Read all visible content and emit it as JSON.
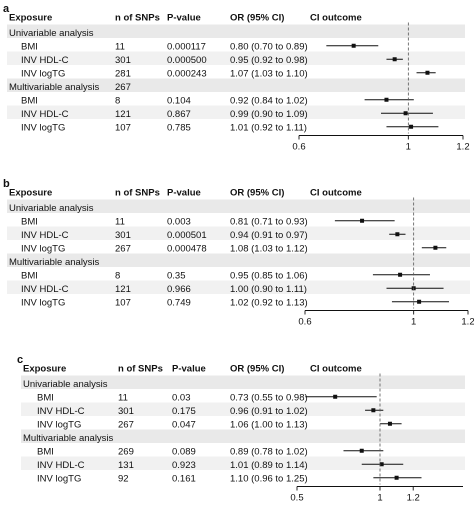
{
  "chart_data": [
    {
      "type": "forest",
      "panel_label": "a",
      "columns": [
        "Exposure",
        "n of SNPs",
        "P-value",
        "OR (95% CI)",
        "CI outcome"
      ],
      "reference_line": 1,
      "xlim": [
        0.6,
        1.2
      ],
      "x_ticks": [
        {
          "value": 0.6,
          "label": "0.6"
        },
        {
          "value": 1.0,
          "label": "1"
        },
        {
          "value": 1.2,
          "label": "1.2"
        }
      ],
      "groups": [
        {
          "label": "Univariable analysis",
          "label_value": "",
          "rows": [
            {
              "exposure": "BMI",
              "n_snps": "11",
              "p_value": "0.000117",
              "or_text": "0.80 (0.70 to 0.89)",
              "or": 0.8,
              "lo": 0.7,
              "hi": 0.89
            },
            {
              "exposure": "INV HDL-C",
              "n_snps": "301",
              "p_value": "0.000500",
              "or_text": "0.95 (0.92 to 0.98)",
              "or": 0.95,
              "lo": 0.92,
              "hi": 0.98
            },
            {
              "exposure": "INV logTG",
              "n_snps": "281",
              "p_value": "0.000243",
              "or_text": "1.07 (1.03 to 1.10)",
              "or": 1.07,
              "lo": 1.03,
              "hi": 1.1
            }
          ]
        },
        {
          "label": "Multivariable analysis",
          "label_value": "267",
          "rows": [
            {
              "exposure": "BMI",
              "n_snps": "8",
              "p_value": "0.104",
              "or_text": "0.92 (0.84 to 1.02)",
              "or": 0.92,
              "lo": 0.84,
              "hi": 1.02
            },
            {
              "exposure": "INV HDL-C",
              "n_snps": "121",
              "p_value": "0.867",
              "or_text": "0.99 (0.90 to 1.09)",
              "or": 0.99,
              "lo": 0.9,
              "hi": 1.09
            },
            {
              "exposure": "INV logTG",
              "n_snps": "107",
              "p_value": "0.785",
              "or_text": "1.01 (0.92 to 1.11)",
              "or": 1.01,
              "lo": 0.92,
              "hi": 1.11
            }
          ]
        }
      ]
    },
    {
      "type": "forest",
      "panel_label": "b",
      "columns": [
        "Exposure",
        "n of SNPs",
        "P-value",
        "OR (95% CI)",
        "CI outcome"
      ],
      "reference_line": 1,
      "xlim": [
        0.6,
        1.2
      ],
      "x_ticks": [
        {
          "value": 0.6,
          "label": "0.6"
        },
        {
          "value": 1.0,
          "label": "1"
        },
        {
          "value": 1.2,
          "label": "1.2"
        }
      ],
      "groups": [
        {
          "label": "Univariable analysis",
          "label_value": "",
          "rows": [
            {
              "exposure": "BMI",
              "n_snps": "11",
              "p_value": "0.003",
              "or_text": "0.81 (0.71 to 0.93)",
              "or": 0.81,
              "lo": 0.71,
              "hi": 0.93
            },
            {
              "exposure": "INV HDL-C",
              "n_snps": "301",
              "p_value": "0.000501",
              "or_text": "0.94 (0.91 to 0.97)",
              "or": 0.94,
              "lo": 0.91,
              "hi": 0.97
            },
            {
              "exposure": "INV logTG",
              "n_snps": "267",
              "p_value": "0.000478",
              "or_text": "1.08 (1.03 to 1.12)",
              "or": 1.08,
              "lo": 1.03,
              "hi": 1.12
            }
          ]
        },
        {
          "label": "Multivariable analysis",
          "label_value": "",
          "rows": [
            {
              "exposure": "BMI",
              "n_snps": "8",
              "p_value": "0.35",
              "or_text": "0.95 (0.85 to 1.06)",
              "or": 0.95,
              "lo": 0.85,
              "hi": 1.06
            },
            {
              "exposure": "INV HDL-C",
              "n_snps": "121",
              "p_value": "0.966",
              "or_text": "1.00 (0.90 to 1.11)",
              "or": 1.0,
              "lo": 0.9,
              "hi": 1.11
            },
            {
              "exposure": "INV logTG",
              "n_snps": "107",
              "p_value": "0.749",
              "or_text": "1.02 (0.92 to 1.13)",
              "or": 1.02,
              "lo": 0.92,
              "hi": 1.13
            }
          ]
        }
      ]
    },
    {
      "type": "forest",
      "panel_label": "c",
      "columns": [
        "Exposure",
        "n of SNPs",
        "P-value",
        "OR (95% CI)",
        "CI outcome"
      ],
      "reference_line": 1,
      "xlim": [
        0.5,
        1.5
      ],
      "x_ticks": [
        {
          "value": 0.5,
          "label": "0.5"
        },
        {
          "value": 1.0,
          "label": "1"
        },
        {
          "value": 1.2,
          "label": "1.2"
        }
      ],
      "groups": [
        {
          "label": "Univariable analysis",
          "label_value": "",
          "rows": [
            {
              "exposure": "BMI",
              "n_snps": "11",
              "p_value": "0.03",
              "or_text": "0.73 (0.55 to 0.98)",
              "or": 0.73,
              "lo": 0.55,
              "hi": 0.98
            },
            {
              "exposure": "INV HDL-C",
              "n_snps": "301",
              "p_value": "0.175",
              "or_text": "0.96 (0.91 to 1.02)",
              "or": 0.96,
              "lo": 0.91,
              "hi": 1.02
            },
            {
              "exposure": "INV logTG",
              "n_snps": "267",
              "p_value": "0.047",
              "or_text": "1.06 (1.00 to 1.13)",
              "or": 1.06,
              "lo": 1.0,
              "hi": 1.13
            }
          ]
        },
        {
          "label": "Multivariable analysis",
          "label_value": "",
          "rows": [
            {
              "exposure": "BMI",
              "n_snps": "269",
              "p_value": "0.089",
              "or_text": "0.89 (0.78 to 1.02)",
              "or": 0.89,
              "lo": 0.78,
              "hi": 1.02
            },
            {
              "exposure": "INV HDL-C",
              "n_snps": "131",
              "p_value": "0.923",
              "or_text": "1.01 (0.89 to 1.14)",
              "or": 1.01,
              "lo": 0.89,
              "hi": 1.14
            },
            {
              "exposure": "INV logTG",
              "n_snps": "92",
              "p_value": "0.161",
              "or_text": "1.10 (0.96 to 1.25)",
              "or": 1.1,
              "lo": 0.96,
              "hi": 1.25
            }
          ]
        }
      ]
    }
  ]
}
